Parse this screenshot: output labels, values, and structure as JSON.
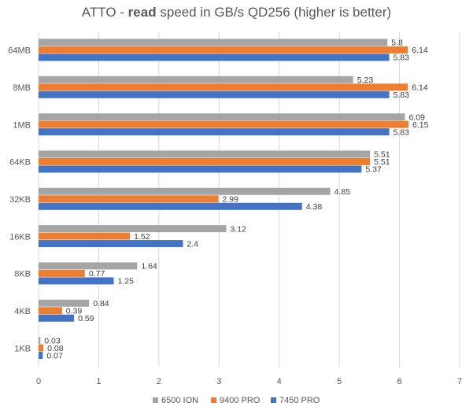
{
  "chart_data": {
    "type": "bar",
    "orientation": "horizontal",
    "title": {
      "prefix": "ATTO - ",
      "bold": "read",
      "suffix": " speed in GB/s QD256 (higher is better)"
    },
    "categories": [
      "64MB",
      "8MB",
      "1MB",
      "64KB",
      "32KB",
      "16KB",
      "8KB",
      "4KB",
      "1KB"
    ],
    "series": [
      {
        "name": "6500 ION",
        "color": "#a5a5a5",
        "values": [
          5.8,
          5.23,
          6.09,
          5.51,
          4.85,
          3.12,
          1.64,
          0.84,
          0.03
        ]
      },
      {
        "name": "9400 PRO",
        "color": "#ed7d31",
        "values": [
          6.14,
          6.14,
          6.15,
          5.51,
          2.99,
          1.52,
          0.77,
          0.39,
          0.08
        ]
      },
      {
        "name": "7450 PRO",
        "color": "#4472c4",
        "values": [
          5.83,
          5.83,
          5.83,
          5.37,
          4.38,
          2.4,
          1.25,
          0.59,
          0.07
        ]
      }
    ],
    "xlim": [
      0,
      7
    ],
    "xticks": [
      0,
      1,
      2,
      3,
      4,
      5,
      6,
      7
    ],
    "grid": true,
    "legend": "bottom",
    "xlabel": "",
    "ylabel": ""
  }
}
